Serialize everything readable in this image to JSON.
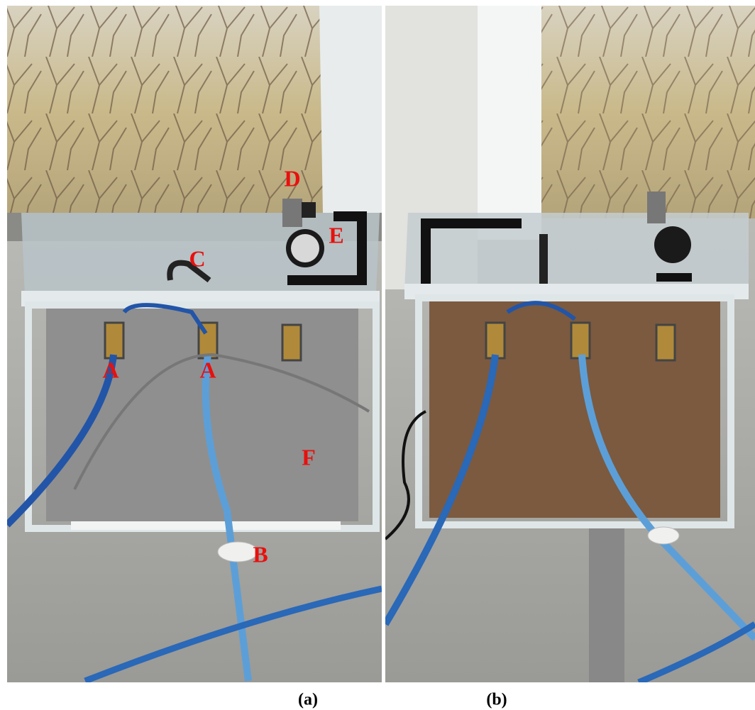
{
  "panels": [
    {
      "caption": "(a)",
      "labels": {
        "A1": "A",
        "A2": "A",
        "B": "B",
        "C": "C",
        "D": "D",
        "E": "E",
        "F": "F"
      }
    },
    {
      "caption": "(b)"
    }
  ]
}
